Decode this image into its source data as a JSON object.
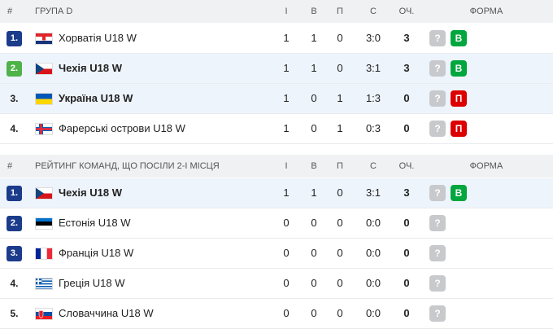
{
  "tables": [
    {
      "header": {
        "rank": "#",
        "name": "ГРУПА D",
        "played": "І",
        "wins": "В",
        "losses": "П",
        "score": "С",
        "points": "ОЧ.",
        "form": "ФОРМА"
      },
      "rows": [
        {
          "rank": "1.",
          "team": "Хорватія U18 W",
          "played": "1",
          "wins": "1",
          "losses": "0",
          "score": "3:0",
          "points": "3",
          "form": [
            "?",
            "В"
          ]
        },
        {
          "rank": "2.",
          "team": "Чехія U18 W",
          "played": "1",
          "wins": "1",
          "losses": "0",
          "score": "3:1",
          "points": "3",
          "form": [
            "?",
            "В"
          ]
        },
        {
          "rank": "3.",
          "team": "Україна U18 W",
          "played": "1",
          "wins": "0",
          "losses": "1",
          "score": "1:3",
          "points": "0",
          "form": [
            "?",
            "П"
          ]
        },
        {
          "rank": "4.",
          "team": "Фарерські острови U18 W",
          "played": "1",
          "wins": "0",
          "losses": "1",
          "score": "0:3",
          "points": "0",
          "form": [
            "?",
            "П"
          ]
        }
      ]
    },
    {
      "header": {
        "rank": "#",
        "name": "РЕЙТИНГ КОМАНД, ЩО ПОСІЛИ 2-І МІСЦЯ",
        "played": "І",
        "wins": "В",
        "losses": "П",
        "score": "С",
        "points": "ОЧ.",
        "form": "ФОРМА"
      },
      "rows": [
        {
          "rank": "1.",
          "team": "Чехія U18 W",
          "played": "1",
          "wins": "1",
          "losses": "0",
          "score": "3:1",
          "points": "3",
          "form": [
            "?",
            "В"
          ]
        },
        {
          "rank": "2.",
          "team": "Естонія U18 W",
          "played": "0",
          "wins": "0",
          "losses": "0",
          "score": "0:0",
          "points": "0",
          "form": [
            "?"
          ]
        },
        {
          "rank": "3.",
          "team": "Франція U18 W",
          "played": "0",
          "wins": "0",
          "losses": "0",
          "score": "0:0",
          "points": "0",
          "form": [
            "?"
          ]
        },
        {
          "rank": "4.",
          "team": "Греція U18 W",
          "played": "0",
          "wins": "0",
          "losses": "0",
          "score": "0:0",
          "points": "0",
          "form": [
            "?"
          ]
        },
        {
          "rank": "5.",
          "team": "Словаччина U18 W",
          "played": "0",
          "wins": "0",
          "losses": "0",
          "score": "0:0",
          "points": "0",
          "form": [
            "?"
          ]
        }
      ]
    }
  ]
}
